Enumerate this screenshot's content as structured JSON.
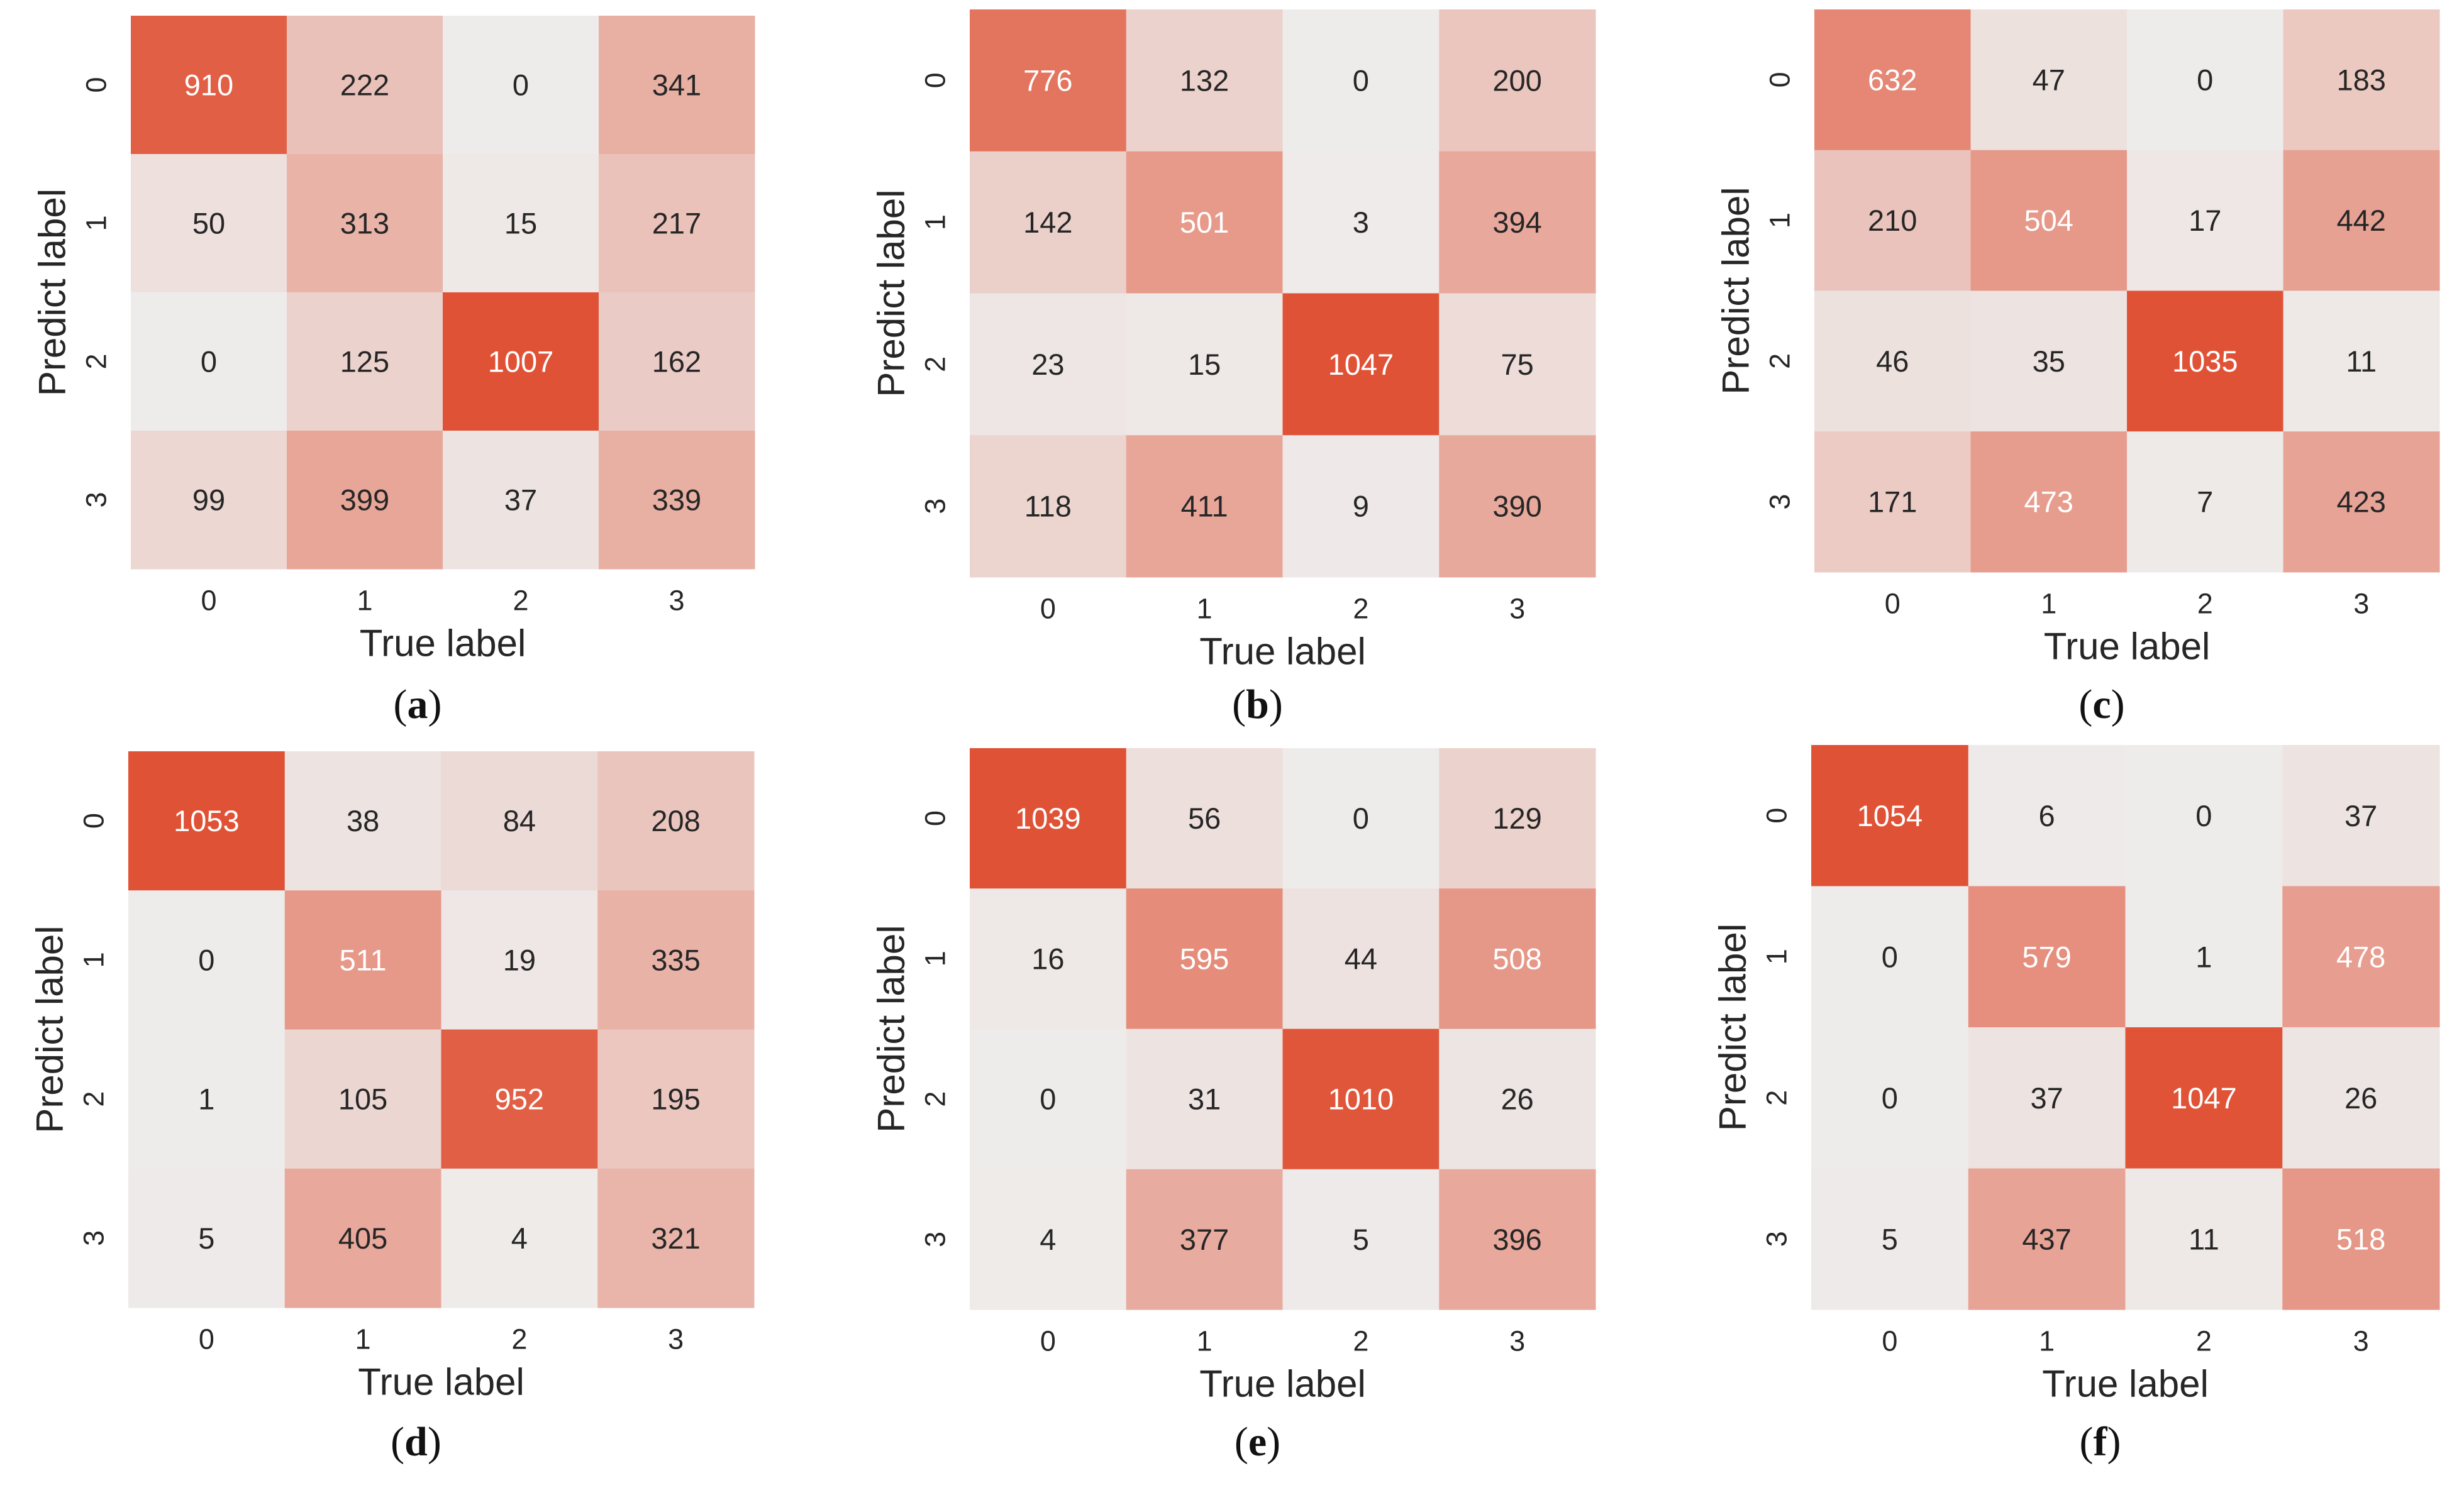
{
  "colors": {
    "low": "#eeeceb",
    "high": "#e05236",
    "text_dark": "#262626",
    "text_light": "#ffffff"
  },
  "chart_data": [
    {
      "type": "heatmap",
      "panel": "a",
      "xlabel": "True label",
      "ylabel": "Predict label",
      "x_ticks": [
        "0",
        "1",
        "2",
        "3"
      ],
      "y_ticks": [
        "0",
        "1",
        "2",
        "3"
      ],
      "matrix": [
        [
          910,
          222,
          0,
          341
        ],
        [
          50,
          313,
          15,
          217
        ],
        [
          0,
          125,
          1007,
          162
        ],
        [
          99,
          399,
          37,
          339
        ]
      ]
    },
    {
      "type": "heatmap",
      "panel": "b",
      "xlabel": "True label",
      "ylabel": "Predict label",
      "x_ticks": [
        "0",
        "1",
        "2",
        "3"
      ],
      "y_ticks": [
        "0",
        "1",
        "2",
        "3"
      ],
      "matrix": [
        [
          776,
          132,
          0,
          200
        ],
        [
          142,
          501,
          3,
          394
        ],
        [
          23,
          15,
          1047,
          75
        ],
        [
          118,
          411,
          9,
          390
        ]
      ]
    },
    {
      "type": "heatmap",
      "panel": "c",
      "xlabel": "True label",
      "ylabel": "Predict label",
      "x_ticks": [
        "0",
        "1",
        "2",
        "3"
      ],
      "y_ticks": [
        "0",
        "1",
        "2",
        "3"
      ],
      "matrix": [
        [
          632,
          47,
          0,
          183
        ],
        [
          210,
          504,
          17,
          442
        ],
        [
          46,
          35,
          1035,
          11
        ],
        [
          171,
          473,
          7,
          423
        ]
      ]
    },
    {
      "type": "heatmap",
      "panel": "d",
      "xlabel": "True label",
      "ylabel": "Predict label",
      "x_ticks": [
        "0",
        "1",
        "2",
        "3"
      ],
      "y_ticks": [
        "0",
        "1",
        "2",
        "3"
      ],
      "matrix": [
        [
          1053,
          38,
          84,
          208
        ],
        [
          0,
          511,
          19,
          335
        ],
        [
          1,
          105,
          952,
          195
        ],
        [
          5,
          405,
          4,
          321
        ]
      ]
    },
    {
      "type": "heatmap",
      "panel": "e",
      "xlabel": "True label",
      "ylabel": "Predict label",
      "x_ticks": [
        "0",
        "1",
        "2",
        "3"
      ],
      "y_ticks": [
        "0",
        "1",
        "2",
        "3"
      ],
      "matrix": [
        [
          1039,
          56,
          0,
          129
        ],
        [
          16,
          595,
          44,
          508
        ],
        [
          0,
          31,
          1010,
          26
        ],
        [
          4,
          377,
          5,
          396
        ]
      ]
    },
    {
      "type": "heatmap",
      "panel": "f",
      "xlabel": "True label",
      "ylabel": "Predict label",
      "x_ticks": [
        "0",
        "1",
        "2",
        "3"
      ],
      "y_ticks": [
        "0",
        "1",
        "2",
        "3"
      ],
      "matrix": [
        [
          1054,
          6,
          0,
          37
        ],
        [
          0,
          579,
          1,
          478
        ],
        [
          0,
          37,
          1047,
          26
        ],
        [
          5,
          437,
          11,
          518
        ]
      ]
    }
  ]
}
